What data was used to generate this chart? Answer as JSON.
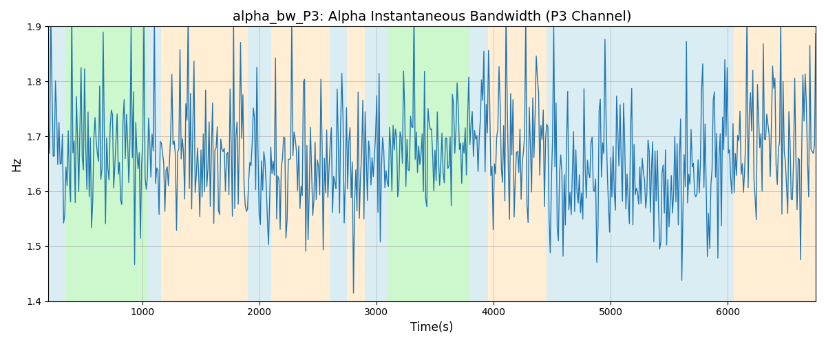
{
  "title": "alpha_bw_P3: Alpha Instantaneous Bandwidth (P3 Channel)",
  "xlabel": "Time(s)",
  "ylabel": "Hz",
  "ylim": [
    1.4,
    1.9
  ],
  "xlim": [
    200,
    6750
  ],
  "bg_bands": [
    {
      "xmin": 200,
      "xmax": 350,
      "color": "#add8e6",
      "alpha": 0.45
    },
    {
      "xmin": 350,
      "xmax": 1050,
      "color": "#90ee90",
      "alpha": 0.45
    },
    {
      "xmin": 1050,
      "xmax": 1160,
      "color": "#add8e6",
      "alpha": 0.45
    },
    {
      "xmin": 1160,
      "xmax": 1900,
      "color": "#ffd8a0",
      "alpha": 0.45
    },
    {
      "xmin": 1900,
      "xmax": 2100,
      "color": "#add8e6",
      "alpha": 0.45
    },
    {
      "xmin": 2100,
      "xmax": 2600,
      "color": "#ffd8a0",
      "alpha": 0.45
    },
    {
      "xmin": 2600,
      "xmax": 2750,
      "color": "#add8e6",
      "alpha": 0.45
    },
    {
      "xmin": 2750,
      "xmax": 2900,
      "color": "#ffd8a0",
      "alpha": 0.45
    },
    {
      "xmin": 2900,
      "xmax": 3100,
      "color": "#add8e6",
      "alpha": 0.45
    },
    {
      "xmin": 3100,
      "xmax": 3800,
      "color": "#90ee90",
      "alpha": 0.45
    },
    {
      "xmin": 3800,
      "xmax": 3950,
      "color": "#add8e6",
      "alpha": 0.45
    },
    {
      "xmin": 3950,
      "xmax": 4450,
      "color": "#ffd8a0",
      "alpha": 0.45
    },
    {
      "xmin": 4450,
      "xmax": 4700,
      "color": "#add8e6",
      "alpha": 0.45
    },
    {
      "xmin": 4700,
      "xmax": 6050,
      "color": "#add8e6",
      "alpha": 0.45
    },
    {
      "xmin": 6050,
      "xmax": 6350,
      "color": "#ffd8a0",
      "alpha": 0.45
    },
    {
      "xmin": 6350,
      "xmax": 6750,
      "color": "#ffd8a0",
      "alpha": 0.45
    }
  ],
  "line_color": "#1f77b4",
  "line_width": 1.0,
  "seed": 42,
  "n_points": 660,
  "t_start": 200,
  "t_end": 6750,
  "base_mean": 1.655,
  "noise_std": 0.075,
  "title_fontsize": 14,
  "label_fontsize": 12,
  "tick_fontsize": 10
}
